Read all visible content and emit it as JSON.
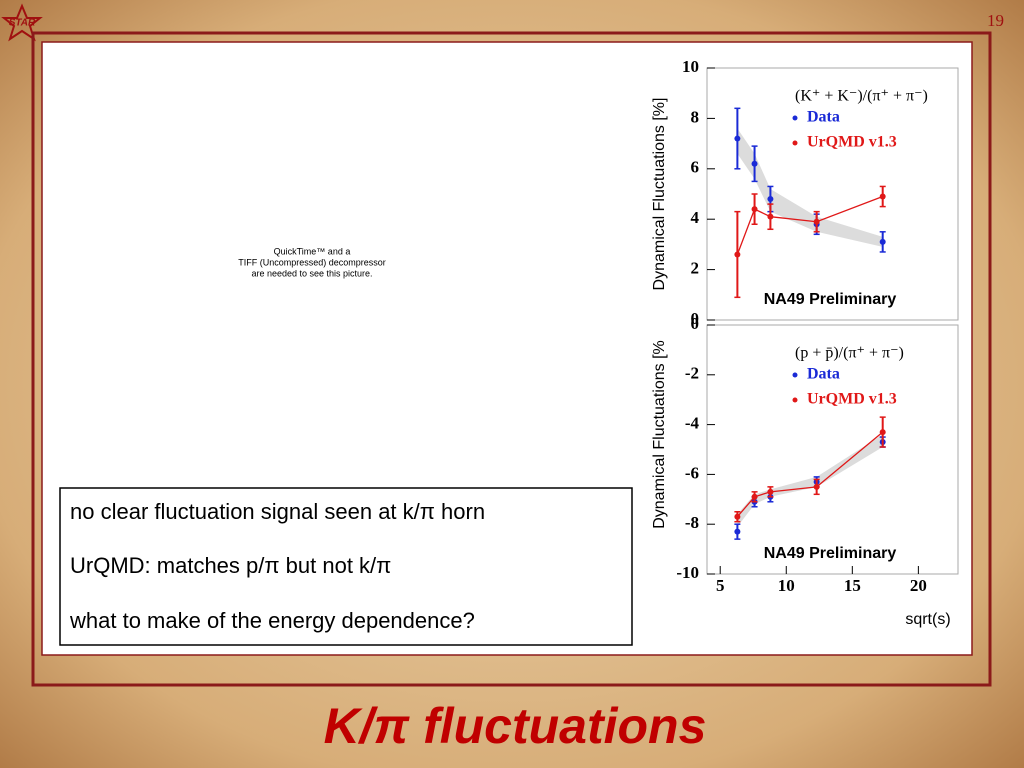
{
  "slide": {
    "number": "19",
    "logo": "STAR",
    "title": "K/π fluctuations",
    "placeholder": [
      "QuickTime™ and a",
      "TIFF (Uncompressed) decompressor",
      "are needed to see this picture."
    ],
    "bullets": [
      "no clear fluctuation signal seen at k/π horn",
      "UrQMD: matches p/π but not k/π",
      "what to make of the energy dependence?"
    ]
  },
  "chart_data": [
    {
      "type": "line",
      "legend_title": "(K⁺ + K⁻)/(π⁺ + π⁻)",
      "annotation": "NA49  Preliminary",
      "ylabel": "Dynamical Fluctuations [%]",
      "x": [
        6.3,
        7.6,
        8.8,
        12.3,
        17.3
      ],
      "xlim": [
        4,
        23
      ],
      "ylim": [
        0,
        10
      ],
      "yticks": [
        0,
        2,
        4,
        6,
        8,
        10
      ],
      "band": {
        "low": [
          6.6,
          5.6,
          4.3,
          3.5,
          2.9
        ],
        "high": [
          7.6,
          6.6,
          5.2,
          4.1,
          3.3
        ],
        "color": "#dcdcdc"
      },
      "series": [
        {
          "name": "Data",
          "color": "#1a2ad6",
          "line": false,
          "values": [
            7.2,
            6.2,
            4.8,
            3.8,
            3.1
          ],
          "errors": [
            1.2,
            0.7,
            0.5,
            0.4,
            0.4
          ]
        },
        {
          "name": "UrQMD v1.3",
          "color": "#e01818",
          "line": true,
          "values": [
            2.6,
            4.4,
            4.1,
            3.9,
            4.9
          ],
          "errors": [
            1.7,
            0.6,
            0.5,
            0.4,
            0.4
          ]
        }
      ]
    },
    {
      "type": "line",
      "legend_title": "(p + p̄)/(π⁺ + π⁻)",
      "annotation": "NA49  Preliminary",
      "ylabel": "Dynamical Fluctuations [%",
      "xlabel": "sqrt(s)",
      "x": [
        6.3,
        7.6,
        8.8,
        12.3,
        17.3
      ],
      "xlim": [
        4,
        23
      ],
      "xticks": [
        5,
        10,
        15,
        20
      ],
      "ylim": [
        -10,
        0
      ],
      "yticks": [
        -10,
        -8,
        -6,
        -4,
        -2,
        0
      ],
      "band": {
        "low": [
          -8.1,
          -7.2,
          -6.9,
          -6.5,
          -4.9
        ],
        "high": [
          -7.6,
          -6.8,
          -6.6,
          -6.1,
          -4.4
        ],
        "color": "#dcdcdc"
      },
      "series": [
        {
          "name": "Data",
          "color": "#1a2ad6",
          "line": false,
          "values": [
            -8.3,
            -7.1,
            -6.9,
            -6.3,
            -4.7
          ],
          "errors": [
            0.3,
            0.2,
            0.2,
            0.2,
            0.2
          ]
        },
        {
          "name": "UrQMD v1.3",
          "color": "#e01818",
          "line": true,
          "values": [
            -7.7,
            -6.9,
            -6.7,
            -6.5,
            -4.3
          ],
          "errors": [
            0.2,
            0.2,
            0.2,
            0.3,
            0.6
          ]
        }
      ]
    }
  ]
}
